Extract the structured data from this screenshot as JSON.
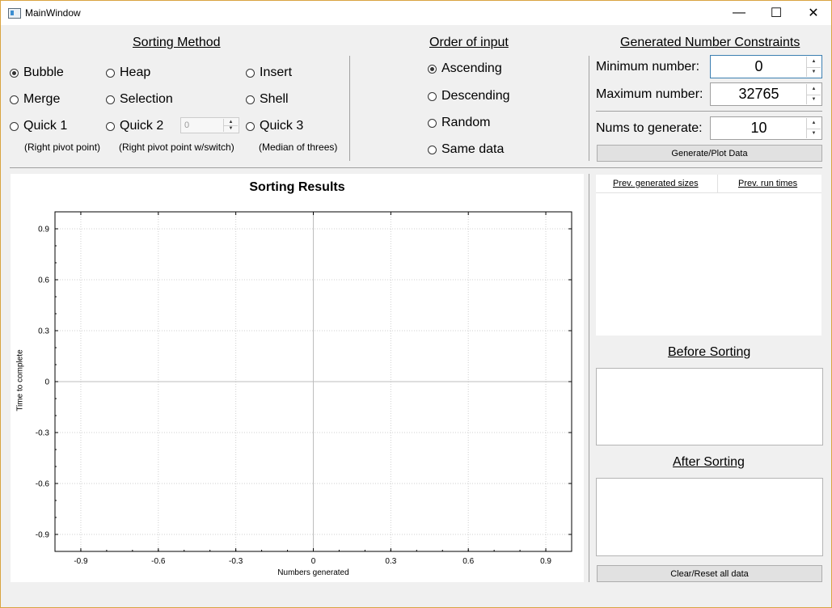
{
  "window": {
    "title": "MainWindow"
  },
  "titlebar_buttons": {
    "minimize": "—",
    "maximize": "☐",
    "close": "✕"
  },
  "sorting_method": {
    "title": "Sorting Method",
    "options": [
      "Bubble",
      "Heap",
      "Insert",
      "Merge",
      "Selection",
      "Shell",
      "Quick 1",
      "Quick 2",
      "Quick 3"
    ],
    "selected": "Bubble",
    "quick2_spin_value": "0",
    "notes": [
      "(Right pivot point)",
      "(Right pivot point w/switch)",
      "(Median of threes)"
    ]
  },
  "order_of_input": {
    "title": "Order of input",
    "options": [
      "Ascending",
      "Descending",
      "Random",
      "Same data"
    ],
    "selected": "Ascending"
  },
  "constraints": {
    "title": "Generated Number Constraints",
    "min_label": "Minimum number:",
    "min_value": "0",
    "max_label": "Maximum number:",
    "max_value": "32765",
    "count_label": "Nums to generate:",
    "count_value": "10",
    "generate_button": "Generate/Plot Data"
  },
  "chart_data": {
    "type": "scatter",
    "title": "Sorting Results",
    "xlabel": "Numbers generated",
    "ylabel": "Time to complete",
    "xlim": [
      -1,
      1
    ],
    "ylim": [
      -1,
      1
    ],
    "x_ticks": [
      "-0.9",
      "-0.6",
      "-0.3",
      "0",
      "0.3",
      "0.6",
      "0.9"
    ],
    "y_ticks": [
      "0.9",
      "0.6",
      "0.3",
      "0",
      "-0.3",
      "-0.6",
      "-0.9"
    ],
    "grid": true,
    "series": []
  },
  "history": {
    "col1": "Prev. generated sizes",
    "col2": "Prev. run times"
  },
  "before_sorting": {
    "title": "Before Sorting"
  },
  "after_sorting": {
    "title": "After Sorting"
  },
  "clear_button": "Clear/Reset all data"
}
